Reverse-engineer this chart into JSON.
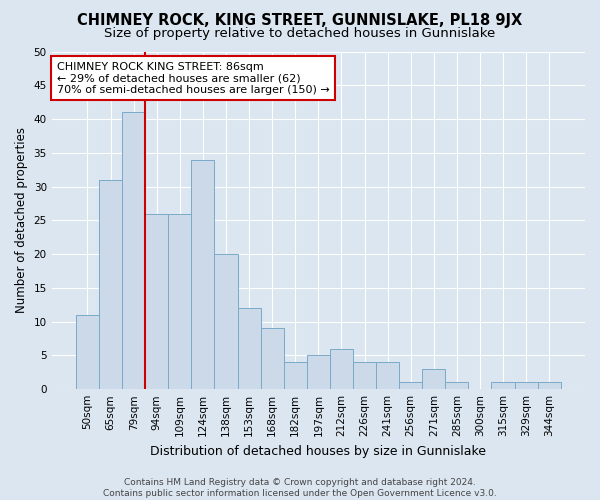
{
  "title": "CHIMNEY ROCK, KING STREET, GUNNISLAKE, PL18 9JX",
  "subtitle": "Size of property relative to detached houses in Gunnislake",
  "xlabel": "Distribution of detached houses by size in Gunnislake",
  "ylabel": "Number of detached properties",
  "categories": [
    "50sqm",
    "65sqm",
    "79sqm",
    "94sqm",
    "109sqm",
    "124sqm",
    "138sqm",
    "153sqm",
    "168sqm",
    "182sqm",
    "197sqm",
    "212sqm",
    "226sqm",
    "241sqm",
    "256sqm",
    "271sqm",
    "285sqm",
    "300sqm",
    "315sqm",
    "329sqm",
    "344sqm"
  ],
  "values": [
    11,
    31,
    41,
    26,
    26,
    34,
    20,
    12,
    9,
    4,
    5,
    6,
    4,
    4,
    1,
    3,
    1,
    0,
    1,
    1,
    1
  ],
  "bar_color": "#ccd9e8",
  "bar_edge_color": "#7aaac8",
  "vline_color": "#cc0000",
  "vline_x_index": 2,
  "annotation_text": "CHIMNEY ROCK KING STREET: 86sqm\n← 29% of detached houses are smaller (62)\n70% of semi-detached houses are larger (150) →",
  "annotation_box_facecolor": "#ffffff",
  "annotation_box_edgecolor": "#cc0000",
  "ylim": [
    0,
    50
  ],
  "yticks": [
    0,
    5,
    10,
    15,
    20,
    25,
    30,
    35,
    40,
    45,
    50
  ],
  "footer": "Contains HM Land Registry data © Crown copyright and database right 2024.\nContains public sector information licensed under the Open Government Licence v3.0.",
  "bg_color": "#dce6f0",
  "grid_color": "#ffffff",
  "title_fontsize": 10.5,
  "subtitle_fontsize": 9.5,
  "tick_fontsize": 7.5,
  "ylabel_fontsize": 8.5,
  "xlabel_fontsize": 9,
  "footer_fontsize": 6.5,
  "annotation_fontsize": 8
}
